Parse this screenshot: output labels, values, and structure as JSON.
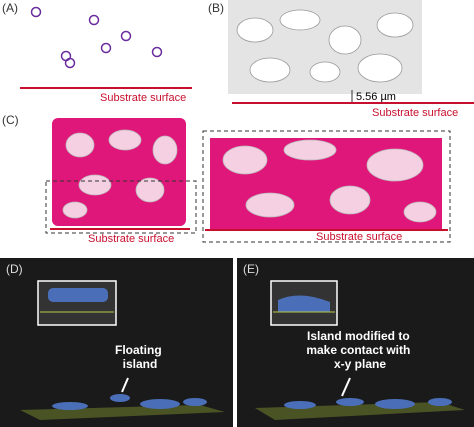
{
  "panels": [
    {
      "label": "(A)",
      "caption": "Substrate surface"
    },
    {
      "label": "(B)",
      "caption": "Substrate surface",
      "measurement": "5.56 µm"
    },
    {
      "label": "(C)",
      "captions": [
        "Substrate surface",
        "Substrate surface"
      ]
    },
    {
      "label": "(D)",
      "annotation": [
        "Floating",
        "island"
      ]
    },
    {
      "label": "(E)",
      "annotation": [
        "Island modified to",
        "make contact with",
        "x-y plane"
      ]
    }
  ]
}
